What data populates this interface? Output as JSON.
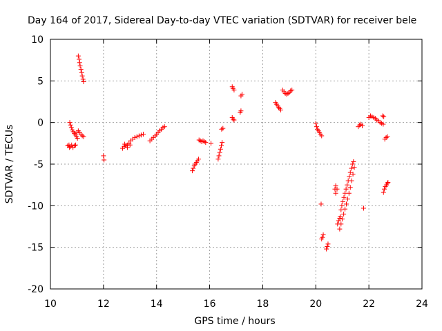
{
  "chart_data": {
    "type": "scatter",
    "title": "Day 164 of 2017, Sidereal Day-to-day VTEC variation (SDTVAR) for receiver bele",
    "xlabel": "GPS time / hours",
    "ylabel": "SDTVAR / TECUs",
    "xlim": [
      10,
      24
    ],
    "ylim": [
      -20,
      10
    ],
    "xticks": [
      "10",
      "12",
      "14",
      "16",
      "18",
      "20",
      "22",
      "24"
    ],
    "yticks": [
      "-20",
      "-15",
      "-10",
      "-5",
      "0",
      "5",
      "10"
    ],
    "grid": true,
    "marker": "+",
    "color": "#ff0000",
    "series": [
      {
        "name": "SDTVAR",
        "points": [
          [
            10.65,
            -2.8
          ],
          [
            10.7,
            -2.7
          ],
          [
            10.72,
            -3.0
          ],
          [
            10.75,
            -2.9
          ],
          [
            10.8,
            -2.7
          ],
          [
            10.85,
            -3.0
          ],
          [
            10.9,
            -2.8
          ],
          [
            10.95,
            -2.7
          ],
          [
            10.73,
            0.0
          ],
          [
            10.76,
            -0.3
          ],
          [
            10.79,
            -0.6
          ],
          [
            10.82,
            -0.9
          ],
          [
            10.86,
            -1.1
          ],
          [
            10.9,
            -1.3
          ],
          [
            10.94,
            -1.5
          ],
          [
            10.98,
            -1.7
          ],
          [
            11.02,
            -1.9
          ],
          [
            11.0,
            -1.2
          ],
          [
            11.05,
            -1.0
          ],
          [
            11.1,
            -1.2
          ],
          [
            11.15,
            -1.4
          ],
          [
            11.2,
            -1.6
          ],
          [
            11.25,
            -1.7
          ],
          [
            11.05,
            8.0
          ],
          [
            11.08,
            7.6
          ],
          [
            11.1,
            7.2
          ],
          [
            11.12,
            6.8
          ],
          [
            11.15,
            6.4
          ],
          [
            11.18,
            6.0
          ],
          [
            11.2,
            5.6
          ],
          [
            11.23,
            5.2
          ],
          [
            11.25,
            4.9
          ],
          [
            12.0,
            -4.0
          ],
          [
            12.02,
            -4.5
          ],
          [
            12.72,
            -3.1
          ],
          [
            12.78,
            -2.9
          ],
          [
            12.84,
            -2.8
          ],
          [
            12.9,
            -2.7
          ],
          [
            12.96,
            -2.5
          ],
          [
            13.02,
            -2.2
          ],
          [
            13.1,
            -2.0
          ],
          [
            13.18,
            -1.8
          ],
          [
            13.26,
            -1.7
          ],
          [
            13.34,
            -1.6
          ],
          [
            13.42,
            -1.5
          ],
          [
            13.5,
            -1.4
          ],
          [
            12.8,
            -2.6
          ],
          [
            12.9,
            -3.0
          ],
          [
            13.0,
            -2.7
          ],
          [
            13.75,
            -2.2
          ],
          [
            13.82,
            -2.0
          ],
          [
            13.88,
            -1.8
          ],
          [
            13.95,
            -1.6
          ],
          [
            14.0,
            -1.4
          ],
          [
            14.06,
            -1.2
          ],
          [
            14.12,
            -1.0
          ],
          [
            14.18,
            -0.8
          ],
          [
            14.24,
            -0.6
          ],
          [
            14.3,
            -0.5
          ],
          [
            15.35,
            -5.8
          ],
          [
            15.38,
            -5.5
          ],
          [
            15.42,
            -5.2
          ],
          [
            15.46,
            -5.0
          ],
          [
            15.5,
            -4.8
          ],
          [
            15.54,
            -4.6
          ],
          [
            15.58,
            -4.4
          ],
          [
            15.6,
            -2.1
          ],
          [
            15.65,
            -2.2
          ],
          [
            15.7,
            -2.3
          ],
          [
            15.75,
            -2.2
          ],
          [
            15.8,
            -2.3
          ],
          [
            15.85,
            -2.4
          ],
          [
            16.05,
            -2.5
          ],
          [
            16.32,
            -4.4
          ],
          [
            16.35,
            -4.0
          ],
          [
            16.38,
            -3.6
          ],
          [
            16.41,
            -3.2
          ],
          [
            16.44,
            -2.8
          ],
          [
            16.47,
            -2.4
          ],
          [
            16.45,
            -0.8
          ],
          [
            16.5,
            -0.7
          ],
          [
            16.85,
            0.6
          ],
          [
            16.88,
            0.4
          ],
          [
            16.92,
            0.3
          ],
          [
            16.85,
            4.3
          ],
          [
            16.88,
            4.1
          ],
          [
            16.92,
            3.9
          ],
          [
            17.15,
            1.2
          ],
          [
            17.18,
            1.4
          ],
          [
            17.18,
            3.2
          ],
          [
            17.22,
            3.4
          ],
          [
            18.48,
            2.4
          ],
          [
            18.52,
            2.2
          ],
          [
            18.56,
            2.0
          ],
          [
            18.6,
            1.8
          ],
          [
            18.64,
            1.7
          ],
          [
            18.68,
            1.5
          ],
          [
            18.75,
            3.9
          ],
          [
            18.8,
            3.7
          ],
          [
            18.85,
            3.5
          ],
          [
            18.9,
            3.4
          ],
          [
            18.95,
            3.5
          ],
          [
            19.0,
            3.6
          ],
          [
            19.05,
            3.8
          ],
          [
            19.1,
            3.9
          ],
          [
            20.0,
            -0.1
          ],
          [
            20.03,
            -0.5
          ],
          [
            20.06,
            -0.8
          ],
          [
            20.1,
            -1.0
          ],
          [
            20.14,
            -1.2
          ],
          [
            20.18,
            -1.4
          ],
          [
            20.22,
            -1.6
          ],
          [
            20.2,
            -9.8
          ],
          [
            20.22,
            -14.0
          ],
          [
            20.25,
            -13.8
          ],
          [
            20.28,
            -13.5
          ],
          [
            20.4,
            -15.2
          ],
          [
            20.43,
            -14.9
          ],
          [
            20.46,
            -14.6
          ],
          [
            20.72,
            -8.0
          ],
          [
            20.75,
            -7.6
          ],
          [
            20.75,
            -8.5
          ],
          [
            20.8,
            -8.0
          ],
          [
            20.82,
            -12.2
          ],
          [
            20.86,
            -11.8
          ],
          [
            20.9,
            -11.5
          ],
          [
            20.92,
            -11.3
          ],
          [
            20.95,
            -10.5
          ],
          [
            20.98,
            -10.0
          ],
          [
            21.02,
            -9.5
          ],
          [
            21.06,
            -9.0
          ],
          [
            21.1,
            -8.5
          ],
          [
            21.14,
            -8.0
          ],
          [
            21.18,
            -7.5
          ],
          [
            21.22,
            -7.0
          ],
          [
            21.26,
            -6.5
          ],
          [
            21.3,
            -6.0
          ],
          [
            21.34,
            -5.5
          ],
          [
            21.38,
            -5.0
          ],
          [
            21.42,
            -4.7
          ],
          [
            20.9,
            -12.8
          ],
          [
            20.95,
            -12.2
          ],
          [
            21.0,
            -11.6
          ],
          [
            21.05,
            -11.0
          ],
          [
            21.1,
            -10.4
          ],
          [
            21.15,
            -9.8
          ],
          [
            21.2,
            -9.2
          ],
          [
            21.25,
            -8.5
          ],
          [
            21.3,
            -7.8
          ],
          [
            21.35,
            -7.0
          ],
          [
            21.4,
            -6.2
          ],
          [
            21.45,
            -5.4
          ],
          [
            21.6,
            -0.5
          ],
          [
            21.65,
            -0.3
          ],
          [
            21.7,
            -0.2
          ],
          [
            21.75,
            -0.4
          ],
          [
            21.8,
            -10.3
          ],
          [
            22.0,
            0.6
          ],
          [
            22.06,
            0.8
          ],
          [
            22.12,
            0.7
          ],
          [
            22.18,
            0.6
          ],
          [
            22.24,
            0.5
          ],
          [
            22.3,
            0.3
          ],
          [
            22.36,
            0.2
          ],
          [
            22.42,
            0.0
          ],
          [
            22.48,
            -0.1
          ],
          [
            22.54,
            -0.2
          ],
          [
            22.52,
            0.8
          ],
          [
            22.56,
            0.7
          ],
          [
            22.55,
            -8.4
          ],
          [
            22.58,
            -8.0
          ],
          [
            22.62,
            -7.7
          ],
          [
            22.66,
            -7.5
          ],
          [
            22.7,
            -7.3
          ],
          [
            22.72,
            -7.2
          ],
          [
            22.6,
            -2.0
          ],
          [
            22.65,
            -1.8
          ],
          [
            22.7,
            -1.7
          ]
        ]
      }
    ]
  }
}
